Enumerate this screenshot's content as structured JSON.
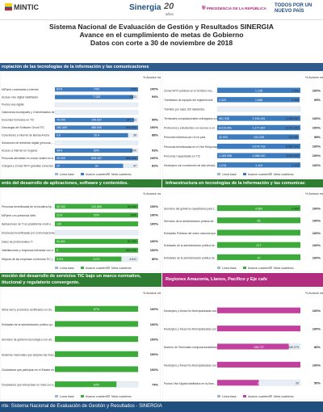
{
  "header": {
    "mintic": "MINTIC",
    "sinergia": "Sinergia",
    "anos_num": "20",
    "anos_txt": "años",
    "presidencia": "PRESIDENCIA DE LA REPÚBLICA",
    "todos": "TODOS POR UN NUEVO PAÍS"
  },
  "title": {
    "line1": "Sistema Nacional de Evaluación de Gestión y Resultados SINERGIA",
    "line2": "Avance en el cumplimiento de metas de Gobierno",
    "line3": "Datos con corte a 30 de noviembre de 2018"
  },
  "sections": {
    "s1": "ropiación de las tecnologías de la información y las comunicaciones",
    "s2": "ento del desarrollo de aplicaciones, software y contenidos.",
    "s3": "Infraestructura en tecnologías de la información y las comunicac",
    "s4": "moción del desarrollo de servicios TIC bajo un marco normativo, titucional y regulatorio convergente.",
    "s5": "Regiones Amazonía, Llanos, Pacífico y Eje cafe"
  },
  "footer": "nte: Sistema Nacional de Evaluación de Gestión y Resultados - SINERGIA",
  "colors": {
    "green": "#3cab3a",
    "blue": "#3d7bbf",
    "magenta": "#c2409e",
    "navy": "#2f5c8a",
    "footer": "#1f4f7f"
  },
  "chart_data": [
    {
      "type": "bar",
      "id": "c1",
      "color": "#3d7bbf",
      "pct_header": "% Avance meta cuatrienio",
      "legend": [
        "Línea base",
        "Avance cuatrienio",
        "Meta cuatrienio"
      ],
      "categories": [
        "MiPyme conectadas a internet",
        "Acceso vive digital habilitados",
        "Puntos vive digital",
        "Cabeceras municipales y 3 beneficiados de Conexiones Digitales (millones)",
        "Docentes formados en TIC",
        "Descargas del Software Circuit TIC",
        "Conexiones a Internet de Banda Ancha",
        "Soluciones de televisión digital (personas)",
        "Acceso a Internet en hogares",
        "Personas atendidas en zonas rurales en los Programas Reivindicatorios",
        "Colegios y Zonas Wi-Fi gratuitas conectadas con alta velocidad"
      ],
      "baseline": [
        "61%",
        "",
        "",
        "3,2",
        "70.000",
        "182.400",
        "9,6",
        "22,1",
        "46%",
        "15.000",
        "20"
      ],
      "achieved": [
        "74%",
        "7.153",
        "",
        "",
        "140.637",
        "480.000",
        "26,4",
        "",
        "59%",
        "605.187",
        "39"
      ],
      "goal": [
        "70%",
        "7.621",
        "",
        "",
        "147.711",
        "600.000",
        "30",
        "",
        "63%",
        "600.000",
        "47"
      ],
      "percent": [
        "100%",
        "94%",
        "",
        "",
        "95%",
        "100%",
        "88%",
        "",
        "93%",
        "100%",
        "82%"
      ]
    },
    {
      "type": "bar",
      "id": "c2",
      "color": "#3d7bbf",
      "pct_header": "% Avance meta cuatrienio",
      "legend": [
        "Línea base",
        "Avance cuatrienio",
        "Meta cuatrienio"
      ],
      "categories": [
        "Zonas Wi-Fi públicas en el territorio nacional",
        "Tramitados de equipos del registro/zona",
        "Trámites por cada 100 habitantes",
        "Terminales computacionales entregados a estudiantes y docentes",
        "Profesores y estudiantes con acceso a un equipo terminal",
        "Personal Individual por rol en país",
        "Personas beneficiadas en el Vive Responsable de las TIC",
        "Personas Capacitadas en TIC",
        "Municipios con conexiones de alta velocidad"
      ],
      "baseline": [
        "",
        "2.320",
        "",
        "961.935",
        "8.215.951",
        "32.933",
        "",
        "1.169.098",
        "1.078"
      ],
      "achieved": [
        "1.128",
        "1.688",
        "",
        "2.496.181",
        "1.177.067",
        "133.226",
        "9.674.733",
        "4.988.240",
        "1.119"
      ],
      "goal": [
        "1.000",
        "2.056",
        "",
        "2.498.262",
        "8.721.593",
        "130.000",
        "8.580.000",
        "3.500.000",
        "1.123"
      ],
      "percent": [
        "100%",
        "99%",
        "",
        "100%",
        "100%",
        "98%",
        "100%",
        "100%",
        "100%"
      ]
    },
    {
      "type": "bar",
      "id": "c3",
      "color": "#3cab3a",
      "pct_header": "% Avance meta cuatrienio",
      "legend": [
        "Línea base",
        "Avance cuatrienio",
        "Meta cuatrienio"
      ],
      "categories": [
        "Personas beneficiadas de la Iniciativa Apps.co",
        "MiPyme con presencia Web",
        "Aplicaciones de TI en plataforma móvil e Internet",
        "Empresas beneficiadas por Comunicaciones orientadas para la generación de contenidos digitales",
        "Datos de profesionales TI",
        "Habilitaciones y empresas lideradas con datos de la cadena de comercio digital",
        "Mejoras de las empresas a industria TIC (software, servicios asociados, contenidos digitales)"
      ],
      "baseline": [
        "50.000",
        "21%",
        "130",
        "",
        "94.401",
        "0",
        "3.0%"
      ],
      "achieved": [
        "132.659",
        "53%",
        "",
        "",
        "",
        "",
        "3.0%"
      ],
      "goal": [
        "96.000",
        "50%",
        "",
        "",
        "81.509",
        "800.000",
        "4.811"
      ],
      "percent": [
        "100%",
        "100%",
        "100%",
        "",
        "100%",
        "100%",
        "80%"
      ]
    },
    {
      "type": "bar",
      "id": "c4",
      "color": "#3cab3a",
      "pct_header": "% Avance meta cuatrienio",
      "legend": [
        "Línea base",
        "Avance cuatrienio",
        "Meta cuatrienio"
      ],
      "categories": [
        "Servicios del gobierno capacitados para fortalecer la gestión de la tecnología de la información en el estado",
        "Servicios de la administración pública del orden nacional que adoptan el marco de referencia de arquitectura empresarial para la gestión de TI",
        "Entidades Públicas del orden nacional que se benefician de acuerdos marco de precio para la contratación de bienes y servicios de TI",
        "Entidades de la administración pública del orden nacional y territorial que publican servicios interoperables en la plataforma del Estado",
        "Entidades de la administración pública del orden nacional que adoptan herramientas del modelo de gestión de TI"
      ],
      "baseline": [
        "",
        "",
        "",
        "",
        ""
      ],
      "achieved": [
        "4.560",
        "85",
        "",
        "377",
        "20"
      ],
      "goal": [
        "4.000",
        "",
        "",
        "",
        ""
      ],
      "percent": [
        "100%",
        "100%",
        "100%",
        "100%",
        "100%"
      ]
    },
    {
      "type": "bar",
      "id": "c5",
      "color": "#3cab3a",
      "pct_header": "% Avance meta cuatrienio",
      "legend": [
        "Línea base",
        "Avance cuatrienio",
        "Meta cuatrienio"
      ],
      "categories": [
        "Sitios web y productos certificados en Gobierno en línea",
        "Entidades de la administración pública que adoptan el modelo de seguridad y privacidad de la información en el Estado",
        "Servicios de gobierno tecnológico con alto nivel de disponibilidad en línea (Rolo de la Excelencia)",
        "Sistemas nacionales que adoptan las líneas de desarrollo de gobierno en línea",
        "Ciudadanos que participan en el Estado en medios electrónicos",
        "Ciudadanos que interactúan en línea con entidades de gobierno"
      ],
      "baseline": [
        "",
        "",
        "",
        "",
        "",
        ""
      ],
      "achieved": [
        "67%",
        "",
        "",
        "",
        "",
        "63%"
      ],
      "goal": [
        "",
        "",
        "",
        "",
        "",
        ""
      ],
      "percent": [
        "100%",
        "100%",
        "100%",
        "100%",
        "100%",
        "74%"
      ]
    },
    {
      "type": "bar",
      "id": "c6",
      "color": "#c2409e",
      "pct_header": "% Avance meta cuatrienio",
      "legend": [
        "Línea base",
        "Avance cuatrienio",
        "Meta cuatrienio"
      ],
      "categories": [
        "Municipios y Áreas No Municipalizadas conectadas a la red de alta velocidad de la Orinoquia",
        "Municipios y Áreas No Municipalizadas conectadas a la red de alta velocidad en el Amazonas",
        "Número de Terminales computacionales/totales para escuelas estudiantes y docentes - Eje Cafetero",
        "Municipios y Áreas No Municipalizadas conectadas a la red de alta velocidad en el Pacífico",
        "Puntos Vive Digital habilitados en la Amazonía"
      ],
      "baseline": [
        "",
        "",
        "",
        "",
        ""
      ],
      "achieved": [
        "",
        "",
        "198.727",
        "",
        "10"
      ],
      "goal": [
        "",
        "",
        "230.273",
        "",
        "20"
      ],
      "percent": [
        "100%",
        "100%",
        "86%",
        "100%",
        "50%"
      ]
    }
  ]
}
